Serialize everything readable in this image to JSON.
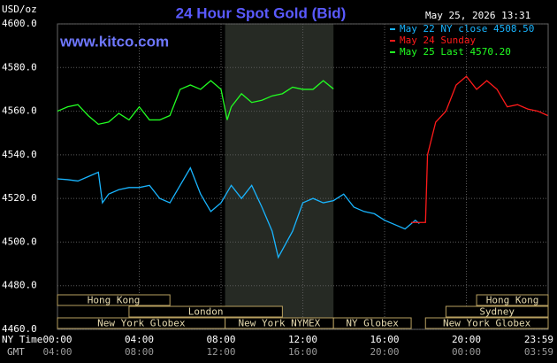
{
  "chart_data": {
    "type": "line",
    "title": "24 Hour Spot Gold (Bid)",
    "y_label": "USD/oz",
    "watermark": "www.kitco.com",
    "timestamp": "May 25, 2026 13:31",
    "x_label": "NY Time",
    "x2_label": "GMT",
    "xlim": [
      0,
      24
    ],
    "xticks": [
      {
        "value": 0,
        "label": "00:00"
      },
      {
        "value": 4,
        "label": "04:00"
      },
      {
        "value": 8,
        "label": "08:00"
      },
      {
        "value": 12,
        "label": "12:00"
      },
      {
        "value": 16,
        "label": "16:00"
      },
      {
        "value": 20,
        "label": "20:00"
      },
      {
        "value": 23.98,
        "label": "23:59"
      }
    ],
    "x2_tick_labels": [
      "04:00",
      "08:00",
      "12:00",
      "16:00",
      "20:00",
      "00:00",
      "03:59"
    ],
    "ylim": [
      4460,
      4600
    ],
    "yticks": [
      {
        "value": 4460,
        "label": "4460.0"
      },
      {
        "value": 4480,
        "label": "4480.0"
      },
      {
        "value": 4500,
        "label": "4500.0"
      },
      {
        "value": 4520,
        "label": "4520.0"
      },
      {
        "value": 4540,
        "label": "4540.0"
      },
      {
        "value": 4560,
        "label": "4560.0"
      },
      {
        "value": 4580,
        "label": "4580.0"
      },
      {
        "value": 4600,
        "label": "4600.0"
      }
    ],
    "grid": true,
    "sessions": [
      "Hong Kong",
      "London",
      "New York Globex",
      "New York NYMEX",
      "NY Globex",
      "Hong Kong",
      "Sydney",
      "New York Globex"
    ],
    "series": [
      {
        "name": "May 22 NY close 4508.50",
        "color": "#19b5ff",
        "x": [
          0,
          0.5,
          1,
          1.5,
          2,
          2.2,
          2.5,
          3,
          3.5,
          4,
          4.5,
          5,
          5.5,
          6,
          6.5,
          7,
          7.5,
          8,
          8.5,
          9,
          9.5,
          10,
          10.5,
          10.8,
          11.5,
          12,
          12.5,
          13,
          13.5,
          14,
          14.5,
          15,
          15.5,
          16,
          16.5,
          17,
          17.5,
          17.7
        ],
        "values": [
          4529,
          4528.6,
          4528,
          4530,
          4532,
          4518,
          4522,
          4524,
          4525,
          4525,
          4526,
          4520,
          4518,
          4526,
          4534,
          4522,
          4514,
          4518,
          4526,
          4520,
          4526,
          4516,
          4505,
          4493,
          4505,
          4518,
          4520,
          4518,
          4519,
          4522,
          4516,
          4514,
          4513,
          4510,
          4508,
          4506,
          4510,
          4508.5
        ]
      },
      {
        "name": "May 24 Sunday",
        "color": "#ff1a1a",
        "x": [
          17.3,
          18,
          18.1,
          18.5,
          19,
          19.5,
          20,
          20.5,
          21,
          21.5,
          22,
          22.5,
          23,
          23.5,
          23.98
        ],
        "values": [
          4509,
          4509,
          4540,
          4555,
          4560,
          4572,
          4576,
          4570,
          4574,
          4570,
          4562,
          4563,
          4561,
          4560,
          4558
        ]
      },
      {
        "name": "May 25 Last 4570.20",
        "color": "#22ff22",
        "x": [
          0,
          0.5,
          1,
          1.5,
          2,
          2.5,
          3,
          3.5,
          4,
          4.5,
          5,
          5.5,
          6,
          6.5,
          7,
          7.5,
          8,
          8.3,
          8.5,
          9,
          9.5,
          10,
          10.5,
          11,
          11.5,
          12,
          12.5,
          13,
          13.5
        ],
        "values": [
          4560,
          4562,
          4563,
          4558,
          4554,
          4555,
          4559,
          4556,
          4562,
          4556,
          4556,
          4558,
          4570,
          4572,
          4570,
          4574,
          4570,
          4556,
          4562,
          4568,
          4564,
          4565,
          4567,
          4568,
          4571,
          4570,
          4570,
          4574,
          4570.2
        ]
      }
    ]
  }
}
